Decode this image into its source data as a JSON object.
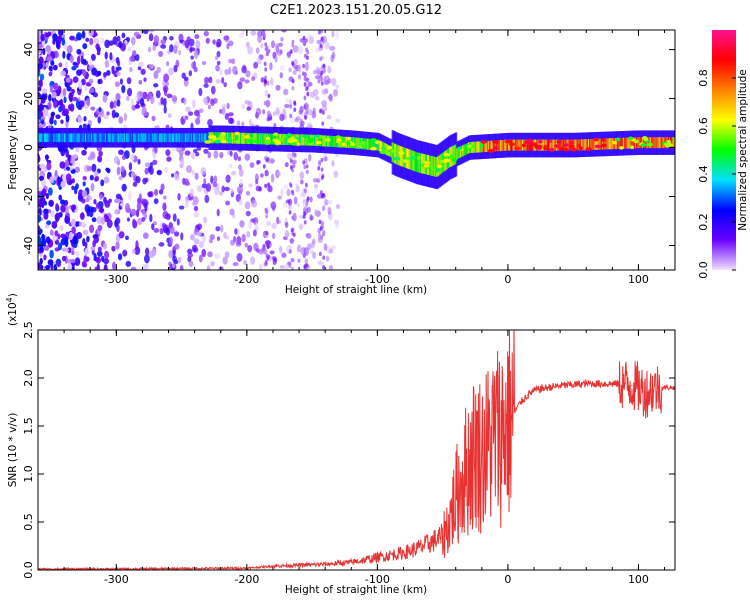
{
  "title": "C2E1.2023.151.20.05.G12",
  "chart_data": [
    {
      "type": "heatmap",
      "xlabel": "Height of straight line (km)",
      "ylabel": "Frequency (Hz)",
      "xlim": [
        -360,
        128
      ],
      "ylim": [
        -50,
        48
      ],
      "x_ticks": [
        -300,
        -200,
        -100,
        0,
        100
      ],
      "y_ticks": [
        -40,
        -20,
        0,
        20,
        40
      ],
      "colorbar": {
        "label": "Normalized spectral amplitude",
        "range": [
          0.0,
          1.0
        ],
        "ticks": [
          "0.0",
          "0.2",
          "0.4",
          "0.6",
          "0.8"
        ],
        "colors": [
          "#f0e0ff",
          "#6a00ff",
          "#0000ff",
          "#00e0ff",
          "#00ff00",
          "#ffff00",
          "#ff8000",
          "#ff0000",
          "#ff1090"
        ]
      },
      "center_track": [
        {
          "x": -220,
          "f": 4
        },
        {
          "x": -150,
          "f": 3
        },
        {
          "x": -120,
          "f": 2
        },
        {
          "x": -100,
          "f": 1
        },
        {
          "x": -85,
          "f": -3
        },
        {
          "x": -70,
          "f": -6
        },
        {
          "x": -55,
          "f": -8
        },
        {
          "x": -45,
          "f": -4
        },
        {
          "x": -30,
          "f": 0
        },
        {
          "x": 0,
          "f": 1
        },
        {
          "x": 50,
          "f": 1
        },
        {
          "x": 100,
          "f": 2
        },
        {
          "x": 128,
          "f": 2
        }
      ]
    },
    {
      "type": "line",
      "xlabel": "Height of straight line (km)",
      "ylabel": "SNR (10 * v/v)",
      "y_multiplier": "(x10",
      "y_multiplier_exp": "4",
      "y_multiplier_close": ")",
      "xlim": [
        -360,
        128
      ],
      "ylim": [
        0.0,
        2.5
      ],
      "x_ticks": [
        -300,
        -200,
        -100,
        0,
        100
      ],
      "y_ticks": [
        "0.0",
        "0.5",
        "1.0",
        "1.5",
        "2.0",
        "2.5"
      ],
      "color": "#e83232",
      "series": [
        {
          "x": [
            -360,
            -300,
            -250,
            -200,
            -180,
            -160,
            -140,
            -120,
            -100,
            -80,
            -70,
            -60,
            -50,
            -45,
            -40,
            -35,
            -30,
            -25,
            -20,
            -15,
            -10,
            -5,
            0,
            5,
            10,
            15,
            20,
            30,
            40,
            50,
            60,
            70,
            80,
            90,
            95,
            100,
            105,
            110,
            115,
            120,
            128
          ],
          "y": [
            0.01,
            0.01,
            0.015,
            0.02,
            0.04,
            0.05,
            0.06,
            0.08,
            0.13,
            0.18,
            0.22,
            0.28,
            0.35,
            0.5,
            0.75,
            0.95,
            1.1,
            1.25,
            1.2,
            1.3,
            1.4,
            1.45,
            1.55,
            1.65,
            1.75,
            1.82,
            1.87,
            1.9,
            1.92,
            1.93,
            1.94,
            1.94,
            1.94,
            1.94,
            1.92,
            1.9,
            1.85,
            1.88,
            1.9,
            1.9,
            1.9
          ]
        }
      ]
    }
  ]
}
